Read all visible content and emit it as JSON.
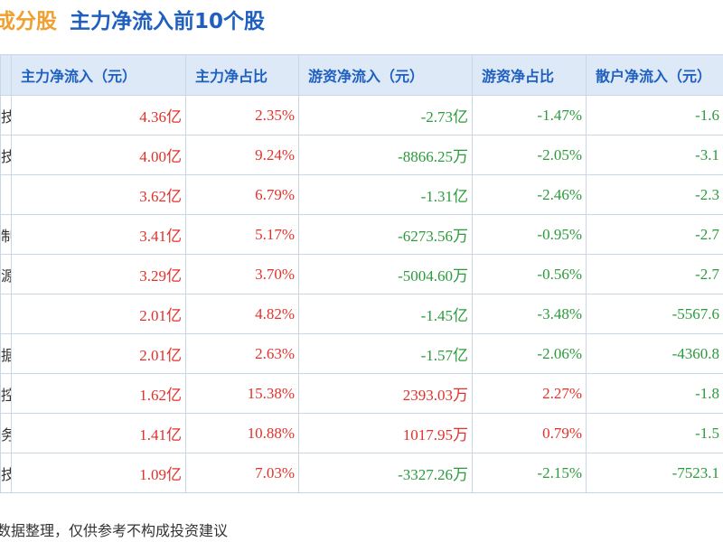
{
  "header": {
    "section": "成分股",
    "title": "主力净流入前10个股"
  },
  "table": {
    "columns": [
      null,
      "主力净流入（元）",
      "主力净占比",
      "游资净流入（元）",
      "游资净占比",
      "散户净流入（元）"
    ],
    "rows": [
      [
        "技",
        "4.36亿",
        "2.35%",
        "-2.73亿",
        "-1.47%",
        "-1.6"
      ],
      [
        "技",
        "4.00亿",
        "9.24%",
        "-8866.25万",
        "-2.05%",
        "-3.1"
      ],
      [
        null,
        "3.62亿",
        "6.79%",
        "-1.31亿",
        "-2.46%",
        "-2.3"
      ],
      [
        "制",
        "3.41亿",
        "5.17%",
        "-6273.56万",
        "-0.95%",
        "-2.7"
      ],
      [
        "源",
        "3.29亿",
        "3.70%",
        "-5004.60万",
        "-0.56%",
        "-2.7"
      ],
      [
        null,
        "2.01亿",
        "4.82%",
        "-1.45亿",
        "-3.48%",
        "-5567.6"
      ],
      [
        "据",
        "2.01亿",
        "2.63%",
        "-1.57亿",
        "-2.06%",
        "-4360.8"
      ],
      [
        "控",
        "1.62亿",
        "15.38%",
        "2393.03万",
        "2.27%",
        "-1.8"
      ],
      [
        "务",
        "1.41亿",
        "10.88%",
        "1017.95万",
        "0.79%",
        "-1.5"
      ],
      [
        "技",
        "1.09亿",
        "7.03%",
        "-3327.26万",
        "-2.15%",
        "-7523.1"
      ]
    ]
  },
  "footer": "数据整理，仅供参考不构成投资建议",
  "colors": {
    "up": "#e2312b",
    "down": "#2b9b3c",
    "header_bg": "#dde9f7",
    "header_text": "#1f5fbf"
  }
}
